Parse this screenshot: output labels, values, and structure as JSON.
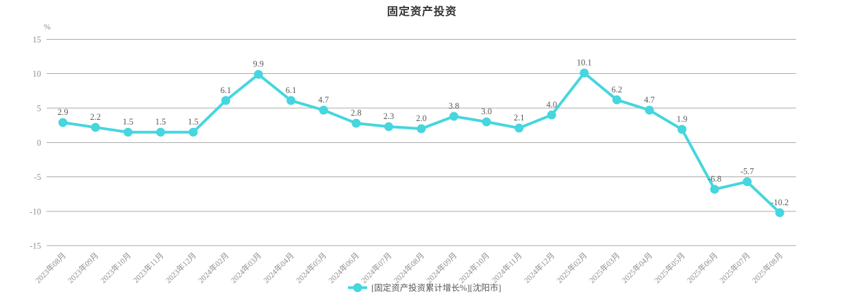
{
  "title": "固定资产投资",
  "y_axis_unit": "%",
  "legend": {
    "label": "[固定资产投资累计增长%][沈阳市]"
  },
  "colors": {
    "line": "#45d6de",
    "marker": "#45d6de",
    "grid": "#a9a9a9",
    "axis_label": "#909090",
    "data_label": "#595959",
    "title": "#333333"
  },
  "chart_data": {
    "type": "line",
    "title": "固定资产投资",
    "xlabel": "",
    "ylabel": "%",
    "ylim": [
      -15,
      15
    ],
    "ytick_interval": 5,
    "grid": true,
    "legend_position": "bottom",
    "x_label_rotation": 45,
    "categories": [
      "2023年08月",
      "2023年09月",
      "2023年10月",
      "2023年11月",
      "2023年12月",
      "2024年02月",
      "2024年03月",
      "2024年04月",
      "2024年05月",
      "2024年06月",
      "2024年07月",
      "2024年08月",
      "2024年09月",
      "2024年10月",
      "2024年11月",
      "2024年12月",
      "2025年02月",
      "2025年03月",
      "2025年04月",
      "2025年05月",
      "2025年06月",
      "2025年07月",
      "2025年08月"
    ],
    "series": [
      {
        "name": "[固定资产投资累计增长%][沈阳市]",
        "values": [
          2.9,
          2.2,
          1.5,
          1.5,
          1.5,
          6.1,
          9.9,
          6.1,
          4.7,
          2.8,
          2.3,
          2.0,
          3.8,
          3.0,
          2.1,
          4.0,
          10.1,
          6.2,
          4.7,
          1.9,
          -6.8,
          -5.7,
          -10.2
        ]
      }
    ]
  }
}
